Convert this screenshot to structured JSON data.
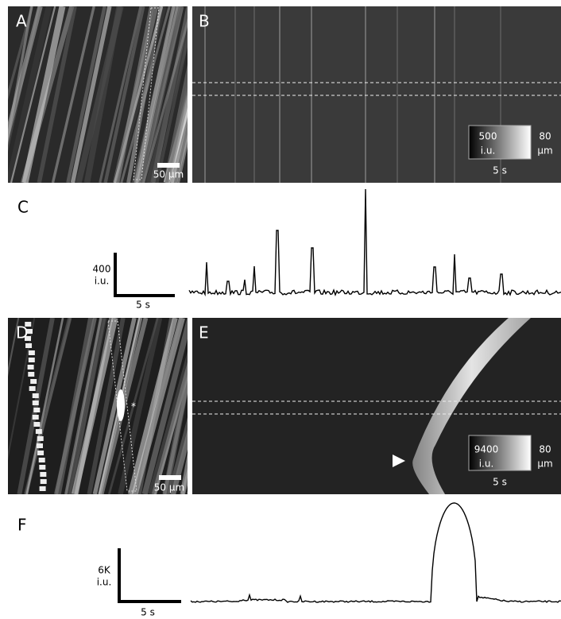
{
  "panels": [
    {
      "label": "A",
      "scale_bar": "50 µm"
    },
    {
      "label": "B",
      "intensity_scale": {
        "value": 500,
        "unit": "i.u."
      },
      "space_scale": {
        "value": 80,
        "unit": "µm"
      },
      "time_scale": "5 s"
    },
    {
      "label": "C",
      "amplitude_scale": {
        "value": 400,
        "unit": "i.u."
      },
      "time_scale": "5 s"
    },
    {
      "label": "D",
      "scale_bar": "50 µm",
      "marker": "*"
    },
    {
      "label": "E",
      "intensity_scale": {
        "value": 9400,
        "unit": "i.u."
      },
      "space_scale": {
        "value": 80,
        "unit": "µm"
      },
      "time_scale": "5 s"
    },
    {
      "label": "F",
      "amplitude_scale": {
        "value": "6K",
        "unit": "i.u."
      },
      "time_scale": "5 s"
    }
  ]
}
